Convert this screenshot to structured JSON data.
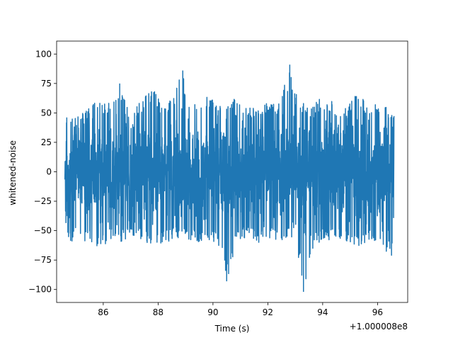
{
  "chart_data": {
    "type": "line",
    "title": "",
    "xlabel": "Time (s)",
    "ylabel": "whitened-noise",
    "x_offset_label": "+1.000008e8",
    "xlim": [
      84.3,
      97.1
    ],
    "ylim": [
      -111,
      111
    ],
    "xticks": [
      86,
      88,
      90,
      92,
      94,
      96
    ],
    "xtick_labels": [
      "86",
      "88",
      "90",
      "92",
      "94",
      "96"
    ],
    "yticks": [
      -100,
      -75,
      -50,
      -25,
      0,
      25,
      50,
      75,
      100
    ],
    "ytick_labels": [
      "−100",
      "−75",
      "−50",
      "−25",
      "0",
      "25",
      "50",
      "75",
      "100"
    ],
    "series": [
      {
        "color": "#1f77b4",
        "x_range": [
          84.6,
          96.6
        ],
        "x_label": "Time (s) +1.000008e8",
        "envelope_upper": [
          [
            84.6,
            46
          ],
          [
            85.0,
            51
          ],
          [
            85.5,
            54
          ],
          [
            85.8,
            62
          ],
          [
            86.1,
            58
          ],
          [
            86.5,
            63
          ],
          [
            86.6,
            75
          ],
          [
            87.0,
            55
          ],
          [
            87.4,
            60
          ],
          [
            87.8,
            72
          ],
          [
            88.2,
            56
          ],
          [
            88.5,
            62
          ],
          [
            88.9,
            86
          ],
          [
            89.2,
            55
          ],
          [
            89.6,
            63
          ],
          [
            89.8,
            66
          ],
          [
            90.2,
            57
          ],
          [
            90.5,
            63
          ],
          [
            90.9,
            62
          ],
          [
            91.2,
            56
          ],
          [
            91.6,
            54
          ],
          [
            92.0,
            59
          ],
          [
            92.4,
            58
          ],
          [
            92.8,
            91
          ],
          [
            93.1,
            60
          ],
          [
            93.5,
            56
          ],
          [
            93.9,
            62
          ],
          [
            94.3,
            62
          ],
          [
            94.6,
            56
          ],
          [
            94.9,
            56
          ],
          [
            95.2,
            70
          ],
          [
            95.6,
            58
          ],
          [
            96.0,
            60
          ],
          [
            96.3,
            58
          ],
          [
            96.6,
            50
          ]
        ],
        "envelope_lower": [
          [
            84.6,
            -65
          ],
          [
            85.0,
            -56
          ],
          [
            85.4,
            -60
          ],
          [
            85.9,
            -65
          ],
          [
            86.3,
            -57
          ],
          [
            86.7,
            -60
          ],
          [
            87.2,
            -55
          ],
          [
            87.6,
            -62
          ],
          [
            88.0,
            -63
          ],
          [
            88.5,
            -58
          ],
          [
            88.9,
            -55
          ],
          [
            89.3,
            -60
          ],
          [
            89.8,
            -58
          ],
          [
            90.2,
            -62
          ],
          [
            90.5,
            -93
          ],
          [
            90.9,
            -58
          ],
          [
            91.3,
            -56
          ],
          [
            91.7,
            -62
          ],
          [
            92.1,
            -57
          ],
          [
            92.6,
            -60
          ],
          [
            93.0,
            -55
          ],
          [
            93.3,
            -102
          ],
          [
            93.7,
            -60
          ],
          [
            94.1,
            -60
          ],
          [
            94.6,
            -57
          ],
          [
            95.0,
            -60
          ],
          [
            95.4,
            -65
          ],
          [
            95.8,
            -58
          ],
          [
            96.2,
            -67
          ],
          [
            96.6,
            -75
          ]
        ],
        "noise_std": 21,
        "peaks": [
          {
            "x": 88.9,
            "y": 86
          },
          {
            "x": 92.8,
            "y": 91
          },
          {
            "x": 90.5,
            "y": -93
          },
          {
            "x": 93.3,
            "y": -102
          },
          {
            "x": 86.6,
            "y": 75
          }
        ]
      }
    ]
  }
}
